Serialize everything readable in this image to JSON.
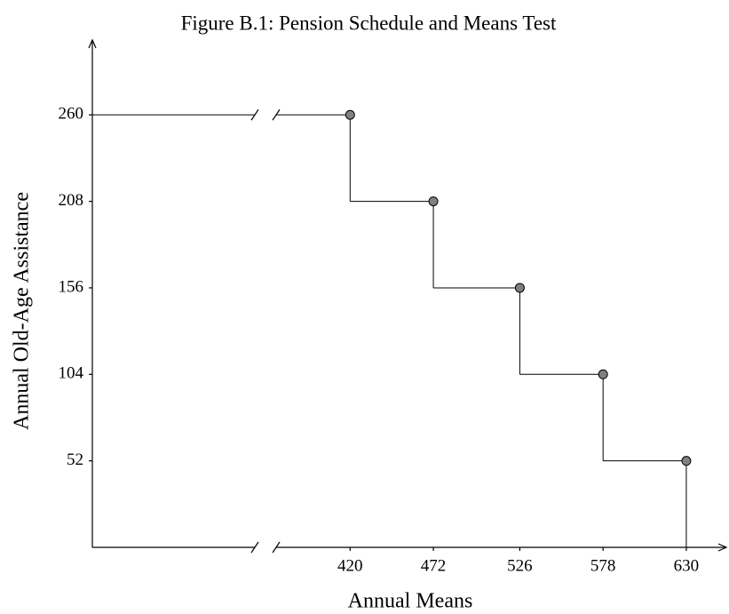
{
  "chart_data": {
    "type": "step",
    "title": "Figure B.1: Pension Schedule and Means Test",
    "x_label": "Annual Means",
    "y_label": "Annual Old-Age Assistance",
    "x": [
      420,
      472,
      526,
      578,
      630
    ],
    "values": [
      260,
      208,
      156,
      104,
      52
    ],
    "xlim": [
      259,
      655
    ],
    "ylim": [
      0,
      305
    ],
    "xticks": [
      420,
      472,
      526,
      578,
      630
    ],
    "yticks": [
      52,
      104,
      156,
      208,
      260
    ],
    "x_axis_break": true,
    "color": "#808080"
  }
}
